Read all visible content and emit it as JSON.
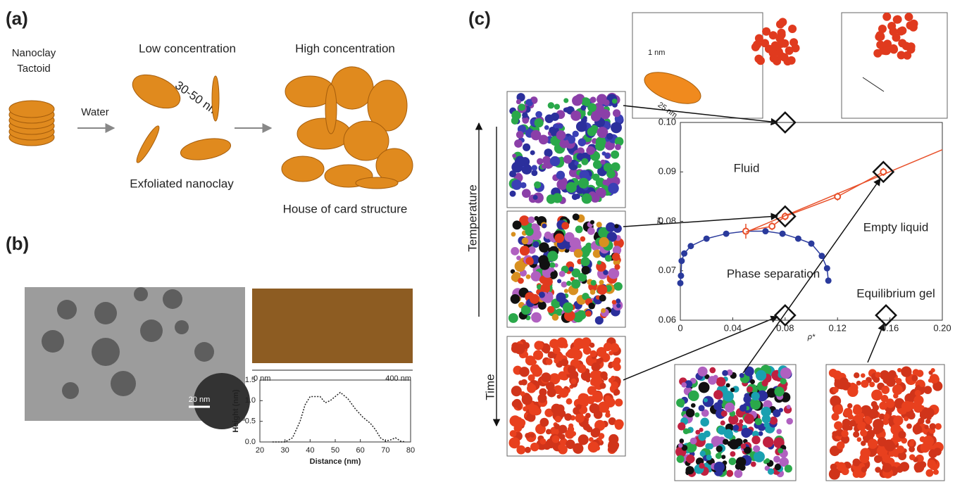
{
  "panels": {
    "a": {
      "label": "(a)",
      "tactoid": [
        "Nanoclay",
        "Tactoid"
      ],
      "water": "Water",
      "low": "Low concentration",
      "size": "30-50 nm",
      "exfoliated": "Exfoliated nanoclay",
      "high": "High concentration",
      "house": "House of card structure"
    },
    "b": {
      "label": "(b)",
      "scale": "20 nm",
      "afm_start": "0 nm",
      "afm_end": "400 nm"
    },
    "c": {
      "label": "(c)",
      "temperature": "Temperature",
      "time": "Time",
      "thickness": "1 nm",
      "diameter": "25 nm",
      "regions": [
        "Fluid",
        "Empty liquid",
        "Phase separation",
        "Equilibrium gel"
      ]
    }
  },
  "chart_data": [
    {
      "type": "line",
      "x_label": "Distance (nm)",
      "y_label": "Height (nm)",
      "xlim": [
        20,
        80
      ],
      "ylim": [
        0,
        1.5
      ],
      "xticks": [
        20,
        30,
        40,
        50,
        60,
        70,
        80
      ],
      "yticks": [
        {
          "value": 0,
          "label": "0.0"
        },
        0.5,
        {
          "value": 1,
          "label": "1.0"
        },
        1.5
      ],
      "series": [
        {
          "color": "#222222",
          "dash": true,
          "x": [
            25,
            30,
            33,
            36,
            38,
            40,
            44,
            46,
            48,
            50,
            52,
            55,
            58,
            61,
            64,
            66,
            68,
            70,
            72,
            74,
            76,
            78
          ],
          "values": [
            0,
            0,
            0.1,
            0.5,
            0.9,
            1.1,
            1.1,
            0.95,
            1.0,
            1.1,
            1.2,
            1.05,
            0.8,
            0.6,
            0.45,
            0.3,
            0.1,
            0.02,
            0.05,
            0.1,
            0.02,
            0
          ]
        }
      ]
    },
    {
      "type": "scatter",
      "x_label": "ρ*",
      "y_label": "T*",
      "xlim": [
        0,
        0.2
      ],
      "ylim": [
        0.06,
        0.1
      ],
      "xticks": [
        0,
        0.04,
        0.08,
        0.12,
        0.16,
        {
          "value": 0.2,
          "label": "0.20"
        }
      ],
      "yticks": [
        0.06,
        0.07,
        0.08,
        0.09,
        {
          "value": 0.1,
          "label": "0.10"
        }
      ],
      "series": [
        {
          "color": "#2a3a9c",
          "x": [
            0,
            0.0005,
            0.001,
            0.003,
            0.008,
            0.02,
            0.035,
            0.05,
            0.065,
            0.078,
            0.09,
            0.1,
            0.108,
            0.112,
            0.113
          ],
          "values": [
            0.0675,
            0.069,
            0.072,
            0.0735,
            0.075,
            0.0765,
            0.0775,
            0.078,
            0.078,
            0.0775,
            0.0765,
            0.0755,
            0.073,
            0.0705,
            0.068
          ]
        },
        {
          "color": "#e8502a",
          "x": [
            0.05,
            0.07,
            0.08,
            0.12,
            0.155
          ],
          "values": [
            0.078,
            0.079,
            0.081,
            0.085,
            0.09
          ],
          "errors": [
            0.0015,
            0.0008,
            0.0008,
            0.0008,
            0.0008
          ]
        },
        {
          "color": "#e8502a",
          "line_only": true,
          "x": [
            0.05,
            0.2
          ],
          "values": [
            0.0778,
            0.0945
          ]
        }
      ],
      "markers": {
        "x": [
          0.08,
          0.08,
          0.155,
          0.08,
          0.157
        ],
        "y": [
          0.1,
          0.081,
          0.09,
          0.061,
          0.061
        ]
      }
    }
  ]
}
